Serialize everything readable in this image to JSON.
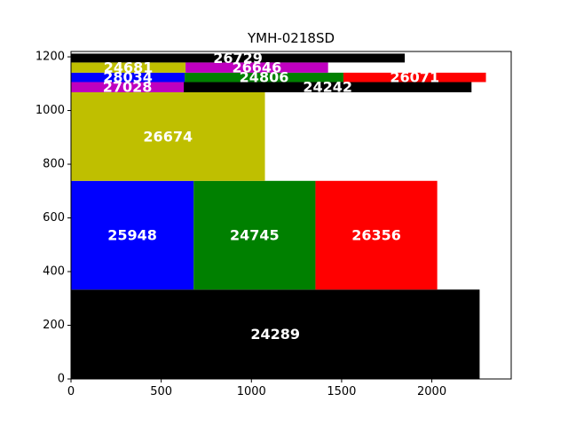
{
  "chart_data": {
    "type": "rectangle_packing",
    "title": "YMH-0218SD",
    "xlabel": "",
    "ylabel": "",
    "xlim": [
      0,
      2440
    ],
    "ylim": [
      0,
      1220
    ],
    "xticks": [
      0,
      500,
      1000,
      1500,
      2000
    ],
    "yticks": [
      0,
      200,
      400,
      600,
      800,
      1000,
      1200
    ],
    "grid": false,
    "legend": "none",
    "rectangles": [
      {
        "label": "24289",
        "x": 0,
        "y": 0,
        "width": 2265,
        "height": 333,
        "color": "#000000"
      },
      {
        "label": "25948",
        "x": 0,
        "y": 333,
        "width": 680,
        "height": 405,
        "color": "#0000ff"
      },
      {
        "label": "24745",
        "x": 680,
        "y": 333,
        "width": 675,
        "height": 405,
        "color": "#008000"
      },
      {
        "label": "26356",
        "x": 1355,
        "y": 333,
        "width": 675,
        "height": 405,
        "color": "#ff0000"
      },
      {
        "label": "26674",
        "x": 0,
        "y": 738,
        "width": 1075,
        "height": 330,
        "color": "#bfbf00"
      },
      {
        "label": "27028",
        "x": 0,
        "y": 1068,
        "width": 625,
        "height": 38,
        "color": "#bf00bf"
      },
      {
        "label": "24242",
        "x": 625,
        "y": 1068,
        "width": 1595,
        "height": 38,
        "color": "#000000"
      },
      {
        "label": "28034",
        "x": 0,
        "y": 1106,
        "width": 630,
        "height": 35,
        "color": "#0000ff"
      },
      {
        "label": "24806",
        "x": 630,
        "y": 1106,
        "width": 880,
        "height": 35,
        "color": "#008000"
      },
      {
        "label": "26071",
        "x": 1510,
        "y": 1106,
        "width": 790,
        "height": 35,
        "color": "#ff0000"
      },
      {
        "label": "24681",
        "x": 0,
        "y": 1141,
        "width": 635,
        "height": 38,
        "color": "#bfbf00"
      },
      {
        "label": "26646",
        "x": 635,
        "y": 1141,
        "width": 790,
        "height": 38,
        "color": "#bf00bf"
      },
      {
        "label": "26729",
        "x": 0,
        "y": 1179,
        "width": 1850,
        "height": 33,
        "color": "#000000"
      }
    ]
  }
}
